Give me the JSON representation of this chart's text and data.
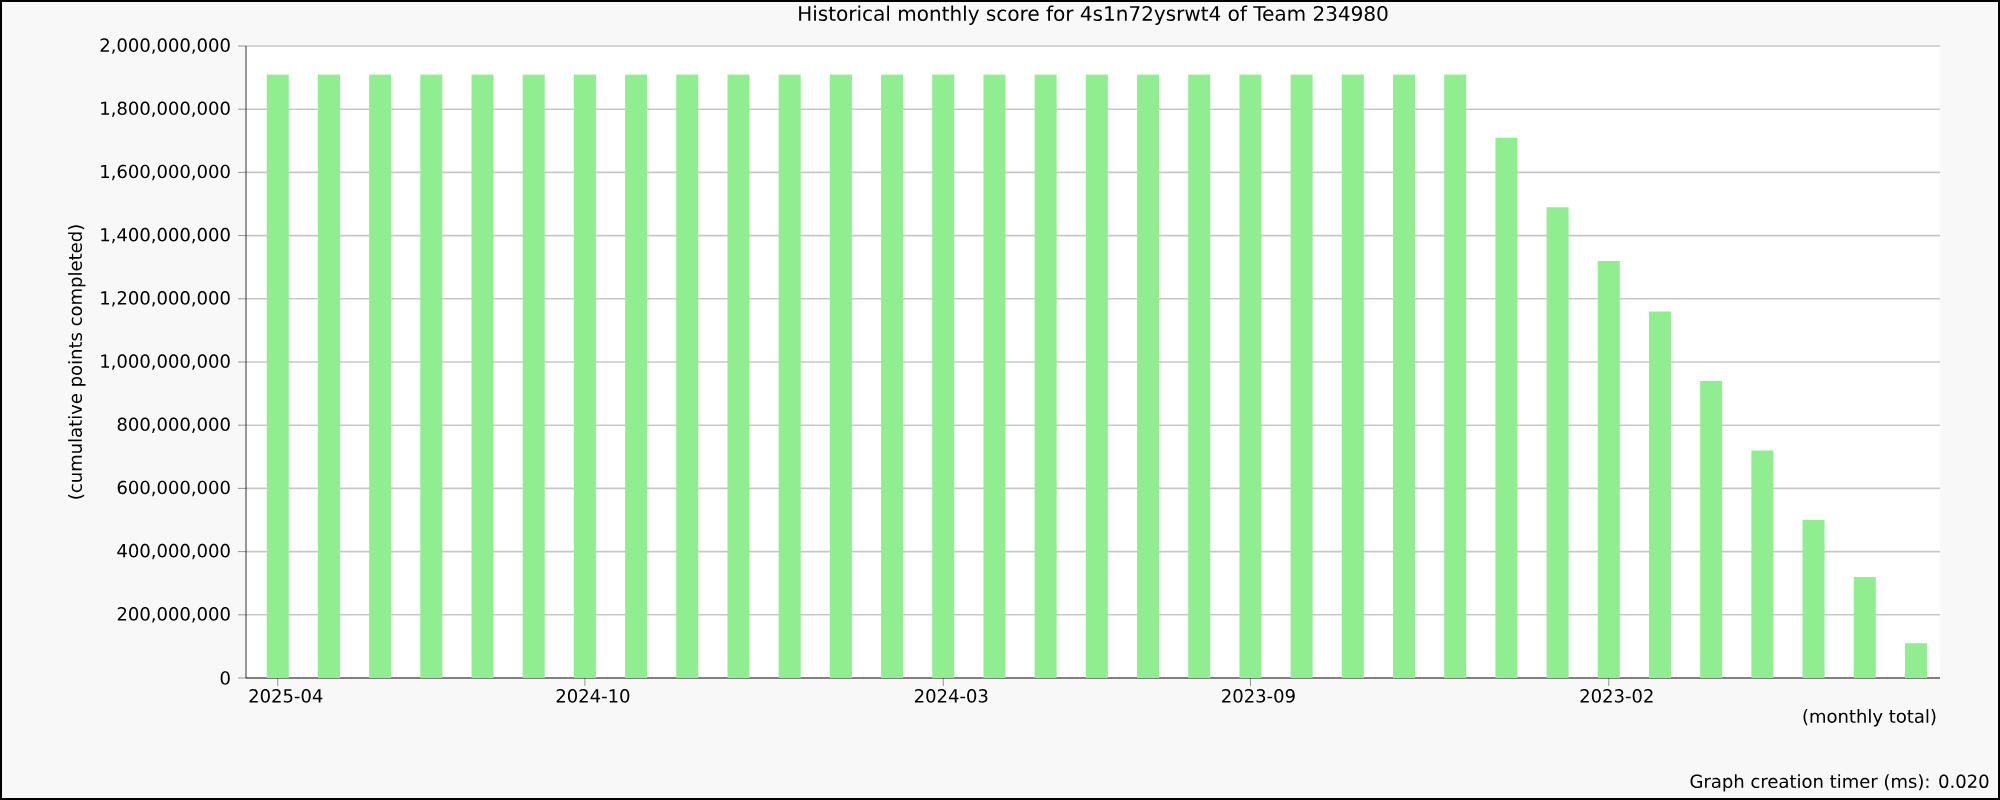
{
  "chart_data": {
    "type": "bar",
    "title": "Historical monthly score for 4s1n72ysrwt4 of Team 234980",
    "xlabel": "(monthly total)",
    "ylabel": "(cumulative points completed)",
    "categories": [
      "2025-04",
      null,
      null,
      null,
      null,
      null,
      "2024-10",
      null,
      null,
      null,
      null,
      null,
      null,
      "2024-03",
      null,
      null,
      null,
      null,
      null,
      "2023-09",
      null,
      null,
      null,
      null,
      null,
      null,
      "2023-02",
      null,
      null,
      null,
      null,
      null,
      null
    ],
    "values": [
      1910000000,
      1910000000,
      1910000000,
      1910000000,
      1910000000,
      1910000000,
      1910000000,
      1910000000,
      1910000000,
      1910000000,
      1910000000,
      1910000000,
      1910000000,
      1910000000,
      1910000000,
      1910000000,
      1910000000,
      1910000000,
      1910000000,
      1910000000,
      1910000000,
      1910000000,
      1910000000,
      1910000000,
      1710000000,
      1490000000,
      1320000000,
      1160000000,
      940000000,
      720000000,
      500000000,
      320000000,
      110000000
    ],
    "color": "#90ee90",
    "ylim": [
      0,
      2000000000
    ],
    "yticks": [
      {
        "value": 0,
        "label": "0"
      },
      {
        "value": 200000000,
        "label": "200,000,000"
      },
      {
        "value": 400000000,
        "label": "400,000,000"
      },
      {
        "value": 600000000,
        "label": "600,000,000"
      },
      {
        "value": 800000000,
        "label": "800,000,000"
      },
      {
        "value": 1000000000,
        "label": "1,000,000,000"
      },
      {
        "value": 1200000000,
        "label": "1,200,000,000"
      },
      {
        "value": 1400000000,
        "label": "1,400,000,000"
      },
      {
        "value": 1600000000,
        "label": "1,600,000,000"
      },
      {
        "value": 1800000000,
        "label": "1,800,000,000"
      },
      {
        "value": 2000000000,
        "label": "2,000,000,000"
      }
    ],
    "grid": "y",
    "annotations": [
      "Graph creation timer (ms): 0.020"
    ]
  }
}
